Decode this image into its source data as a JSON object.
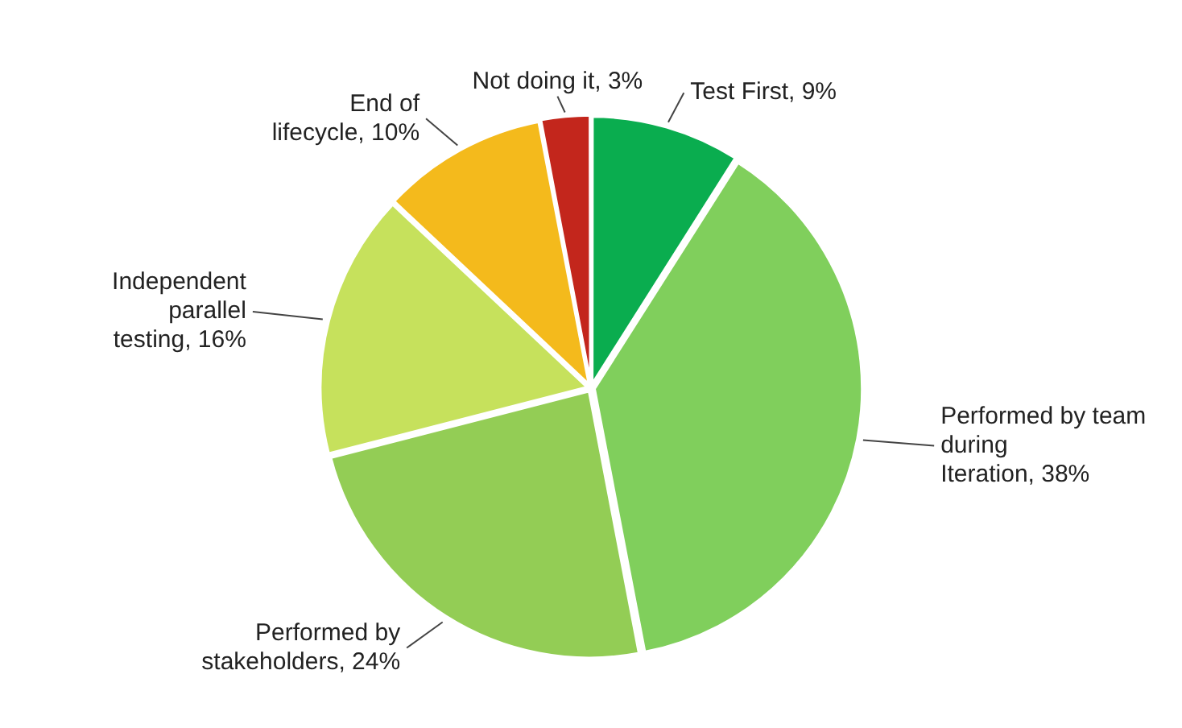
{
  "chart_data": {
    "type": "pie",
    "categories": [
      "Test First",
      "Performed by team during Iteration",
      "Performed by stakeholders",
      "Independent parallel testing",
      "End of lifecycle",
      "Not doing it"
    ],
    "values": [
      9,
      38,
      24,
      16,
      10,
      3
    ],
    "value_labels": [
      "9%",
      "38%",
      "24%",
      "16%",
      "10%",
      "3%"
    ],
    "colors": [
      "#0aad4f",
      "#80cf5c",
      "#93cd55",
      "#c6e15c",
      "#f4ba1c",
      "#c3261c"
    ],
    "legend": false
  }
}
